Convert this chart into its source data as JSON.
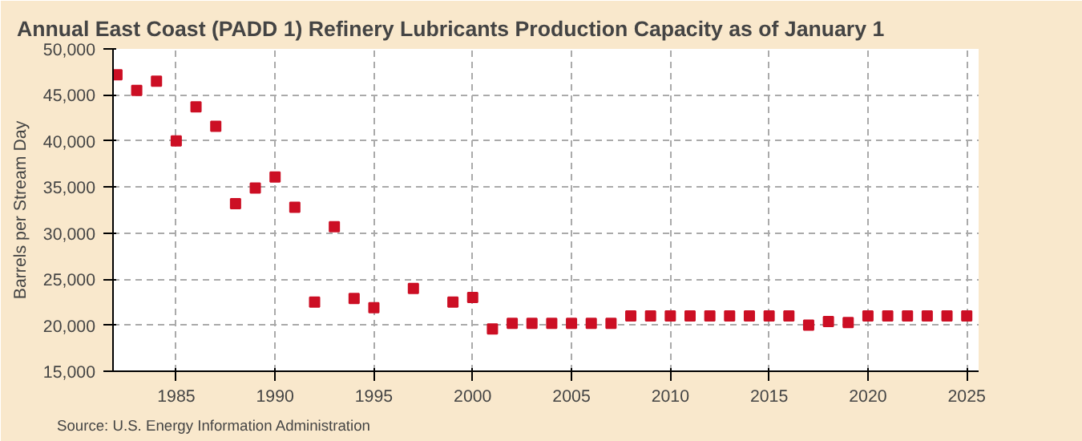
{
  "chart_data": {
    "type": "scatter",
    "title": "Annual East Coast (PADD 1) Refinery Lubricants Production Capacity as of January 1",
    "ylabel": "Barrels per Stream Day",
    "x": [
      1982,
      1983,
      1984,
      1985,
      1986,
      1987,
      1988,
      1989,
      1990,
      1991,
      1992,
      1993,
      1994,
      1995,
      1997,
      1999,
      2000,
      2001,
      2002,
      2003,
      2004,
      2005,
      2006,
      2007,
      2008,
      2009,
      2010,
      2011,
      2012,
      2013,
      2014,
      2015,
      2016,
      2017,
      2018,
      2019,
      2020,
      2021,
      2022,
      2023,
      2024,
      2025
    ],
    "series": [
      {
        "color": "#cc0f24",
        "values": [
          47200,
          45500,
          46500,
          40000,
          43700,
          41600,
          33200,
          34900,
          36100,
          32800,
          22500,
          30700,
          22900,
          21900,
          24000,
          22500,
          23000,
          19600,
          20200,
          20200,
          20200,
          20200,
          20200,
          20200,
          21000,
          21000,
          21000,
          21000,
          21000,
          21000,
          21000,
          21000,
          21000,
          20000,
          20400,
          20300,
          21000,
          21000,
          21000,
          21000,
          21000,
          21000
        ]
      }
    ],
    "xlim": [
      1981.8,
      2025.6
    ],
    "xticks": [
      1985,
      1990,
      1995,
      2000,
      2005,
      2010,
      2015,
      2020,
      2025
    ],
    "ylim": [
      15000,
      50000
    ],
    "yticks": [
      {
        "value": 15000,
        "label": "15,000"
      },
      {
        "value": 20000,
        "label": "20,000"
      },
      {
        "value": 25000,
        "label": "25,000"
      },
      {
        "value": 30000,
        "label": "30,000"
      },
      {
        "value": 35000,
        "label": "35,000"
      },
      {
        "value": 40000,
        "label": "40,000"
      },
      {
        "value": 45000,
        "label": "45,000"
      },
      {
        "value": 50000,
        "label": "50,000"
      }
    ],
    "grid": true,
    "marker": "square",
    "annotations": [
      "Source: U.S. Energy Information Administration"
    ]
  }
}
